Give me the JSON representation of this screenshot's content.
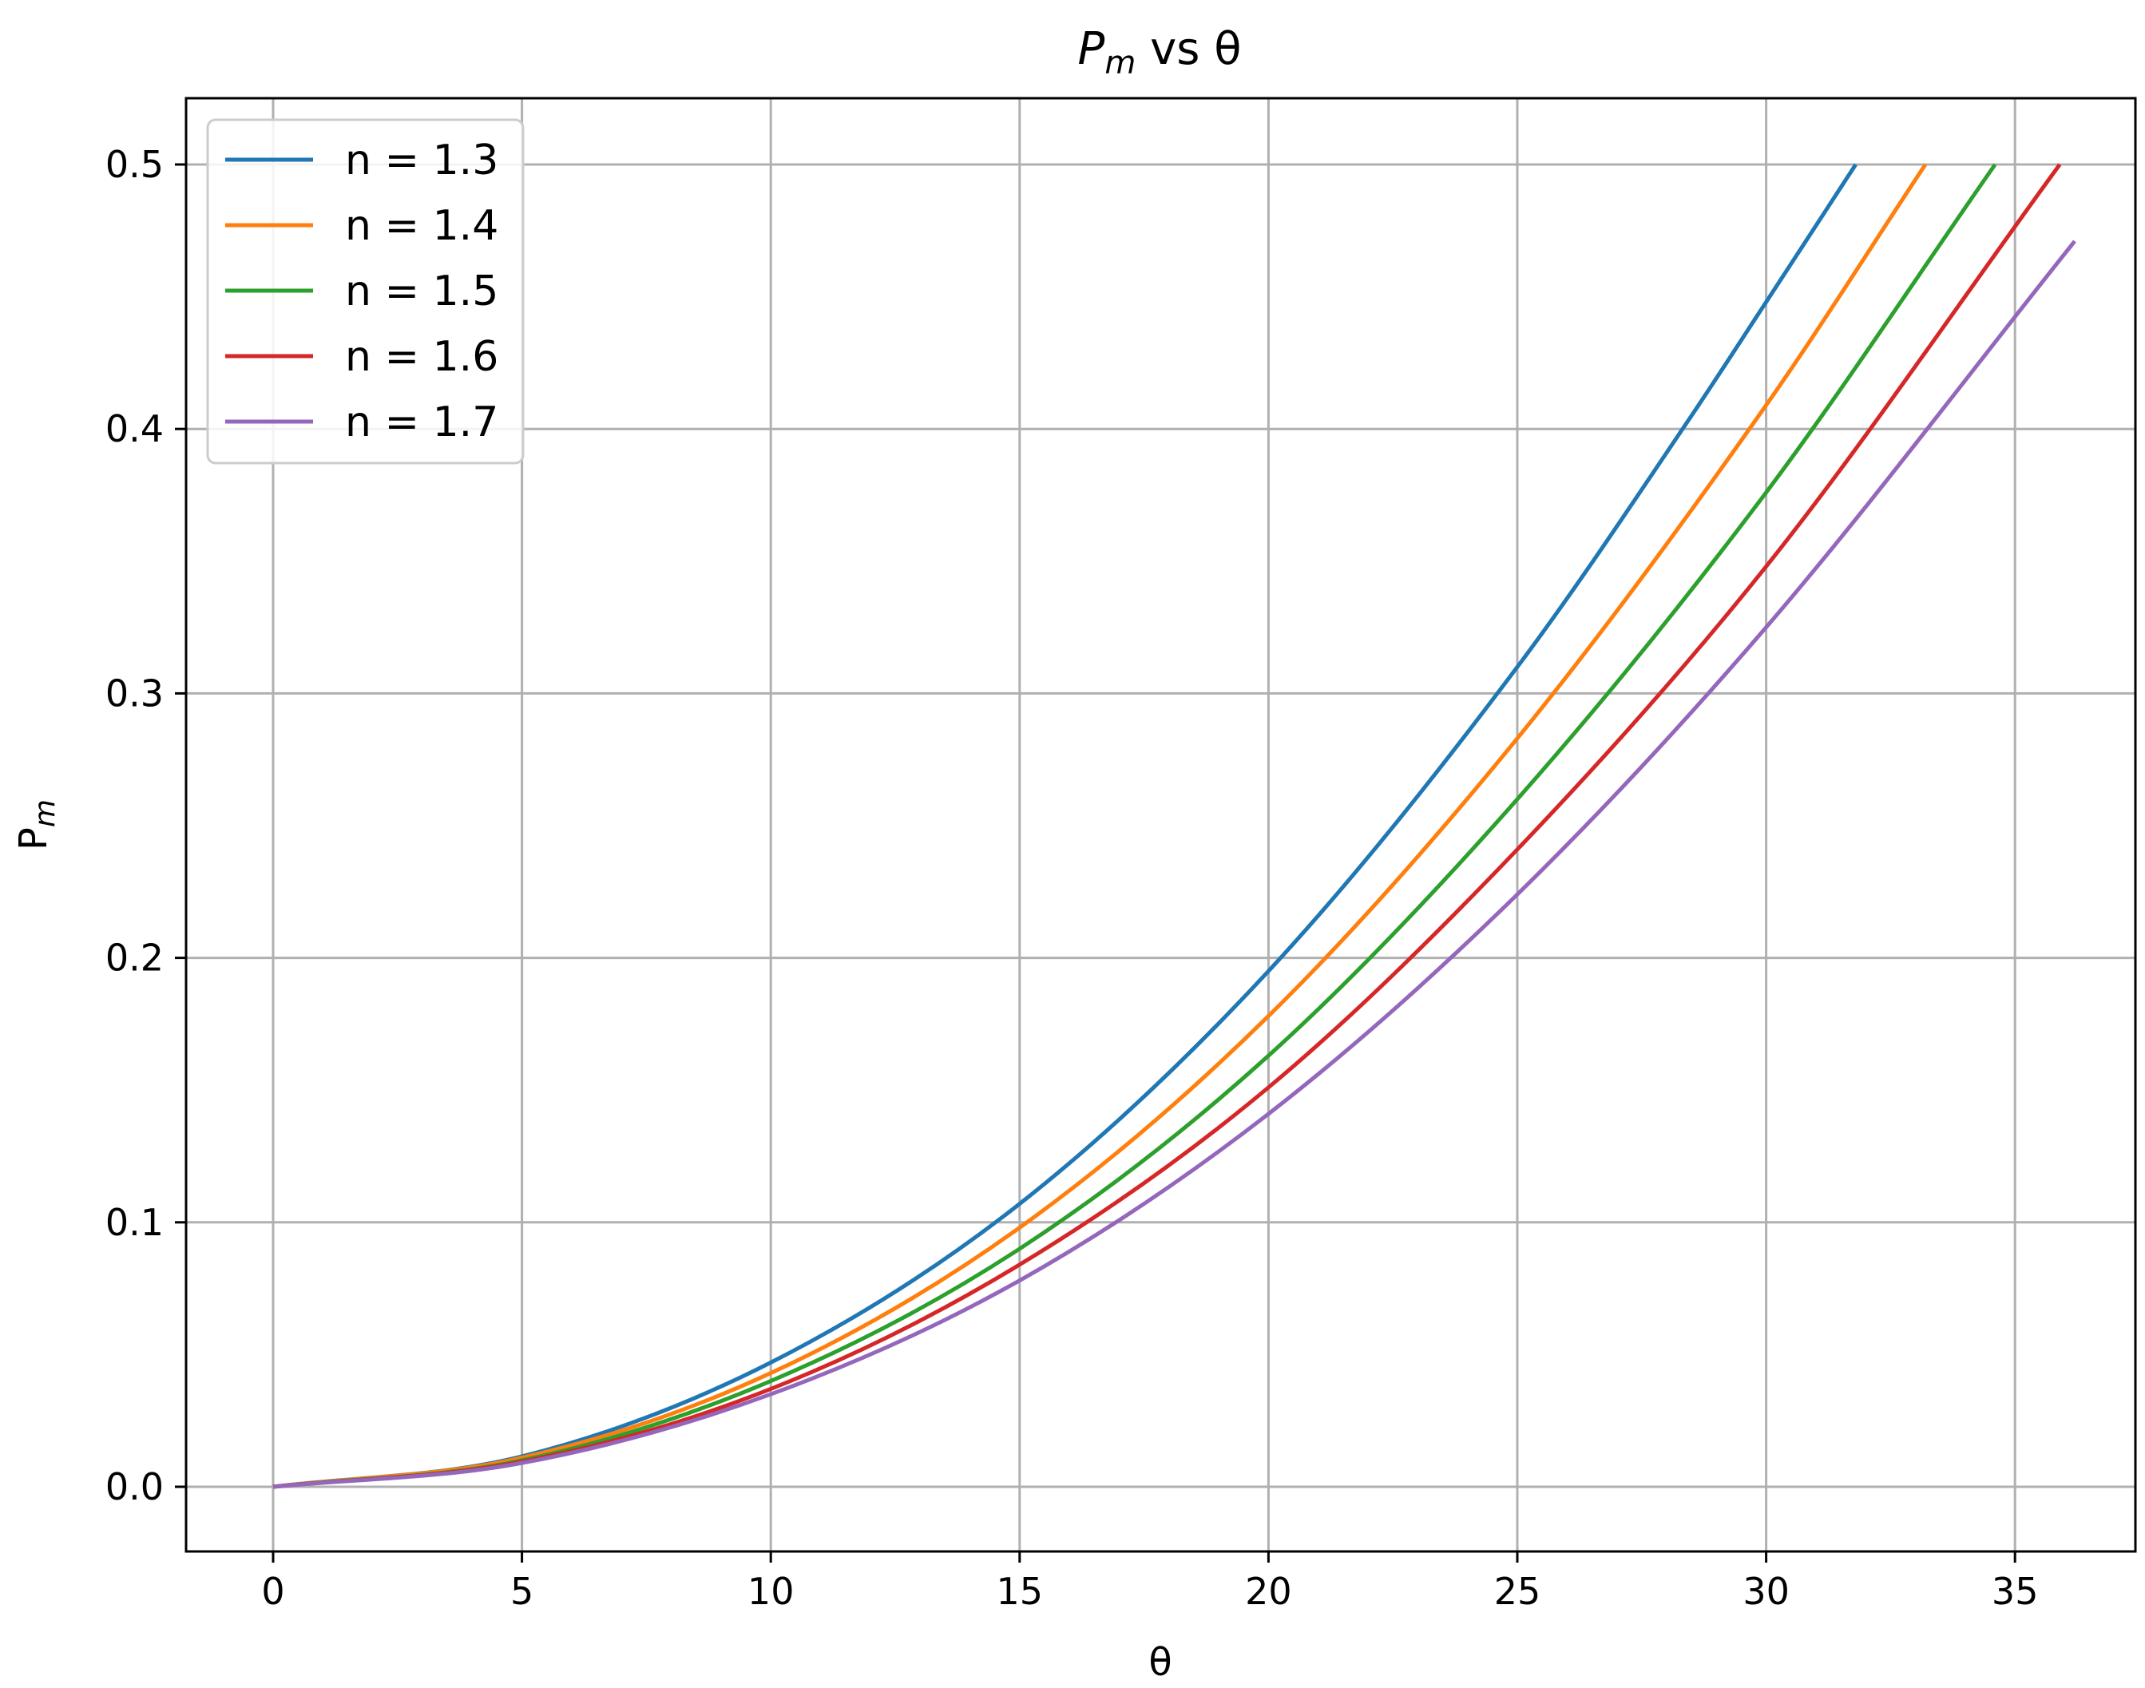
{
  "chart_data": {
    "type": "line",
    "title": "Pm vs θ",
    "title_main": "P",
    "title_sub": "m",
    "title_rest": " vs θ",
    "xlabel": "θ",
    "ylabel_main": "P",
    "ylabel_sub": "m",
    "xlim": [
      -1.8,
      37.9
    ],
    "ylim": [
      -0.025,
      0.525
    ],
    "xticks": [
      0,
      5,
      10,
      15,
      20,
      25,
      30,
      35
    ],
    "xtick_labels": [
      "0",
      "5",
      "10",
      "15",
      "20",
      "25",
      "30",
      "35"
    ],
    "yticks": [
      0.0,
      0.1,
      0.2,
      0.3,
      0.4,
      0.5
    ],
    "ytick_labels": [
      "0.0",
      "0.1",
      "0.2",
      "0.3",
      "0.4",
      "0.5"
    ],
    "grid": true,
    "legend_position": "upper-left",
    "series": [
      {
        "name": "n = 1.3",
        "color": "#1f77b4",
        "x": [
          0,
          5,
          10,
          15,
          20,
          25,
          28.5,
          30,
          31.8
        ],
        "y": [
          0.0,
          0.0115,
          0.047,
          0.107,
          0.195,
          0.31,
          0.405,
          0.448,
          0.5
        ]
      },
      {
        "name": "n = 1.4",
        "color": "#ff7f0e",
        "x": [
          0,
          5,
          10,
          15,
          20,
          25,
          30,
          33.2
        ],
        "y": [
          0.0,
          0.011,
          0.043,
          0.098,
          0.178,
          0.283,
          0.409,
          0.5
        ]
      },
      {
        "name": "n = 1.5",
        "color": "#2ca02c",
        "x": [
          0,
          5,
          10,
          15,
          20,
          25,
          30,
          34.6
        ],
        "y": [
          0.0,
          0.01,
          0.04,
          0.09,
          0.163,
          0.26,
          0.376,
          0.5
        ]
      },
      {
        "name": "n = 1.6",
        "color": "#d62728",
        "x": [
          0,
          5,
          10,
          15,
          20,
          25,
          30,
          35.9
        ],
        "y": [
          0.0,
          0.0095,
          0.037,
          0.084,
          0.151,
          0.241,
          0.348,
          0.5
        ]
      },
      {
        "name": "n = 1.7",
        "color": "#9467bd",
        "x": [
          0,
          5,
          10,
          15,
          20,
          25,
          30,
          36.2
        ],
        "y": [
          0.0,
          0.009,
          0.035,
          0.078,
          0.141,
          0.224,
          0.325,
          0.471
        ]
      }
    ]
  }
}
